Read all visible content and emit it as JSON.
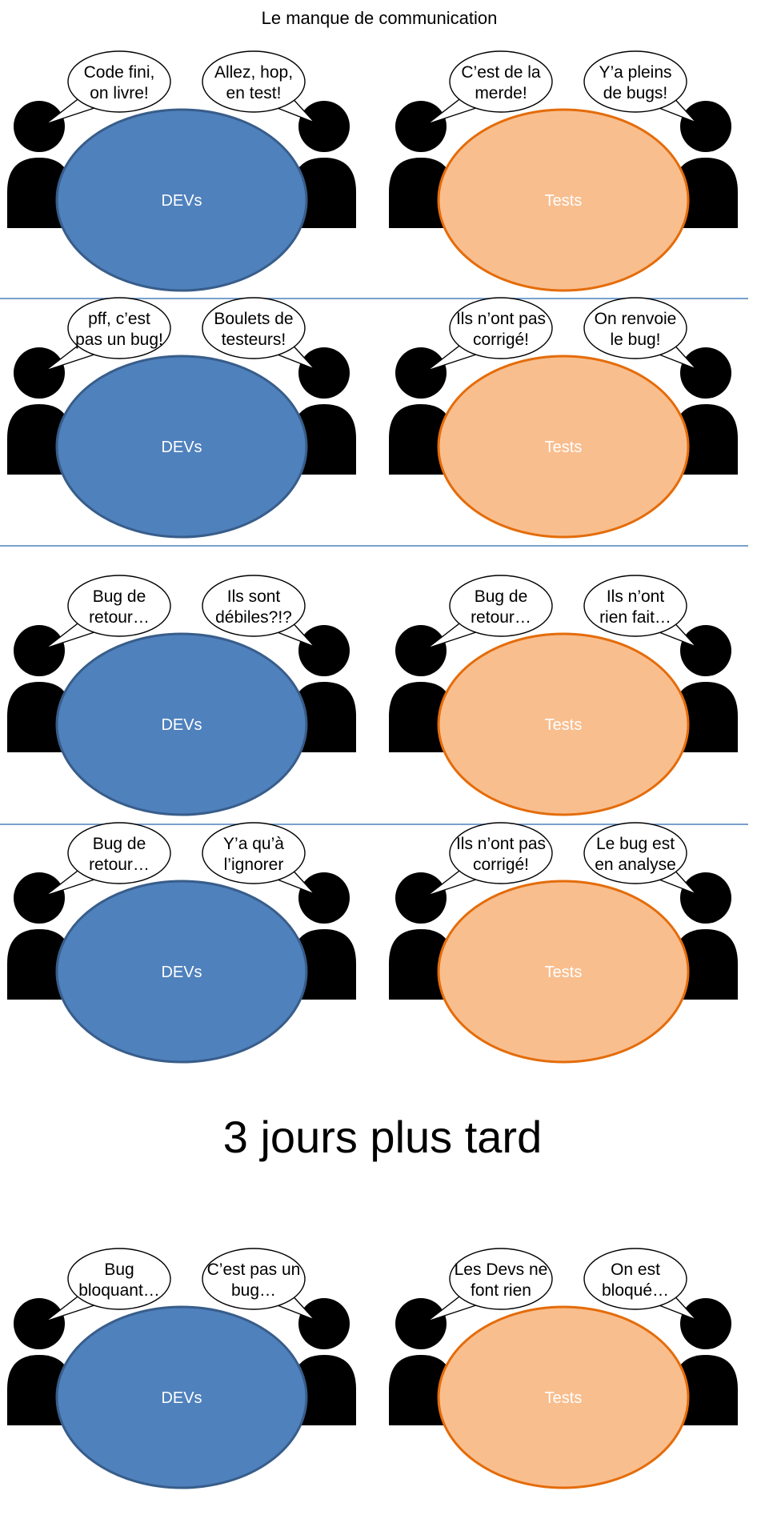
{
  "title": "Le manque de communication",
  "interlude": "3 jours plus tard",
  "colors": {
    "dev_fill": "#4f81bd",
    "dev_stroke": "#385d8a",
    "test_fill": "#f9be8e",
    "test_stroke": "#e46c0a",
    "separator": "#4f81bd",
    "person": "#000000",
    "bubble_fill": "#ffffff",
    "bubble_stroke": "#000000"
  },
  "rows": [
    {
      "dev": {
        "label": "DEVs",
        "left": [
          "Code fini,",
          "on livre!"
        ],
        "right": [
          "Allez, hop,",
          "en test!"
        ]
      },
      "test": {
        "label": "Tests",
        "left": [
          "C’est de la",
          "merde!"
        ],
        "right": [
          "Y’a pleins",
          "de bugs!"
        ]
      }
    },
    {
      "dev": {
        "label": "DEVs",
        "left": [
          "pff, c’est",
          "pas un bug!"
        ],
        "right": [
          "Boulets de",
          "testeurs!"
        ]
      },
      "test": {
        "label": "Tests",
        "left": [
          "Ils n’ont pas",
          "corrigé!"
        ],
        "right": [
          "On renvoie",
          "le bug!"
        ]
      }
    },
    {
      "dev": {
        "label": "DEVs",
        "left": [
          "Bug de",
          "retour…"
        ],
        "right": [
          "Ils sont",
          "débiles?!?"
        ]
      },
      "test": {
        "label": "Tests",
        "left": [
          "Bug de",
          "retour…"
        ],
        "right": [
          "Ils n’ont",
          "rien fait…"
        ]
      }
    },
    {
      "dev": {
        "label": "DEVs",
        "left": [
          "Bug de",
          "retour…"
        ],
        "right": [
          "Y’a qu’à",
          "l’ignorer"
        ]
      },
      "test": {
        "label": "Tests",
        "left": [
          "Ils n’ont pas",
          "corrigé!"
        ],
        "right": [
          "Le bug est",
          "en analyse"
        ]
      }
    },
    {
      "dev": {
        "label": "DEVs",
        "left": [
          "Bug",
          "bloquant…"
        ],
        "right": [
          "C’est pas un",
          "bug…"
        ]
      },
      "test": {
        "label": "Tests",
        "left": [
          "Les Devs ne",
          "font rien"
        ],
        "right": [
          "On est",
          "bloqué…"
        ]
      }
    }
  ]
}
